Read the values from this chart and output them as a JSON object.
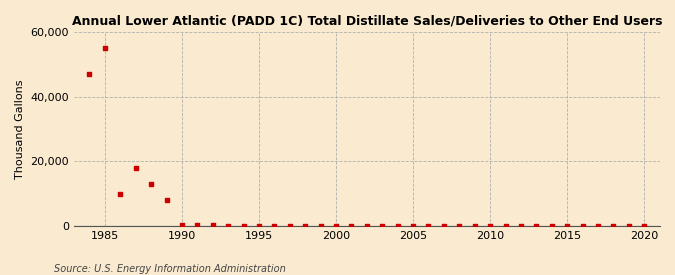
{
  "title_line1": "Annual Lower Atlantic (PADD 1C) Total Distillate Sales/Deliveries to Other End Users",
  "ylabel": "Thousand Gallons",
  "source": "Source: U.S. Energy Information Administration",
  "background_color": "#faebd0",
  "marker_color": "#cc0000",
  "xlim": [
    1983,
    2021
  ],
  "ylim": [
    0,
    60000
  ],
  "yticks": [
    0,
    20000,
    40000,
    60000
  ],
  "xticks": [
    1985,
    1990,
    1995,
    2000,
    2005,
    2010,
    2015,
    2020
  ],
  "data": {
    "1984": 47000,
    "1985": 55000,
    "1986": 10000,
    "1987": 18000,
    "1988": 13000,
    "1989": 8000,
    "1990": 400,
    "1991": 200,
    "1992": 150,
    "1993": 100,
    "1994": 80,
    "1995": 80,
    "1996": 80,
    "1997": 80,
    "1998": 80,
    "1999": 80,
    "2000": 80,
    "2001": 80,
    "2002": 80,
    "2003": 80,
    "2004": 80,
    "2005": 80,
    "2006": 80,
    "2007": 80,
    "2008": 80,
    "2009": 80,
    "2010": 80,
    "2011": 80,
    "2012": 80,
    "2013": 80,
    "2014": 80,
    "2015": 80,
    "2016": 80,
    "2017": 80,
    "2018": 80,
    "2019": 80,
    "2020": 80
  }
}
